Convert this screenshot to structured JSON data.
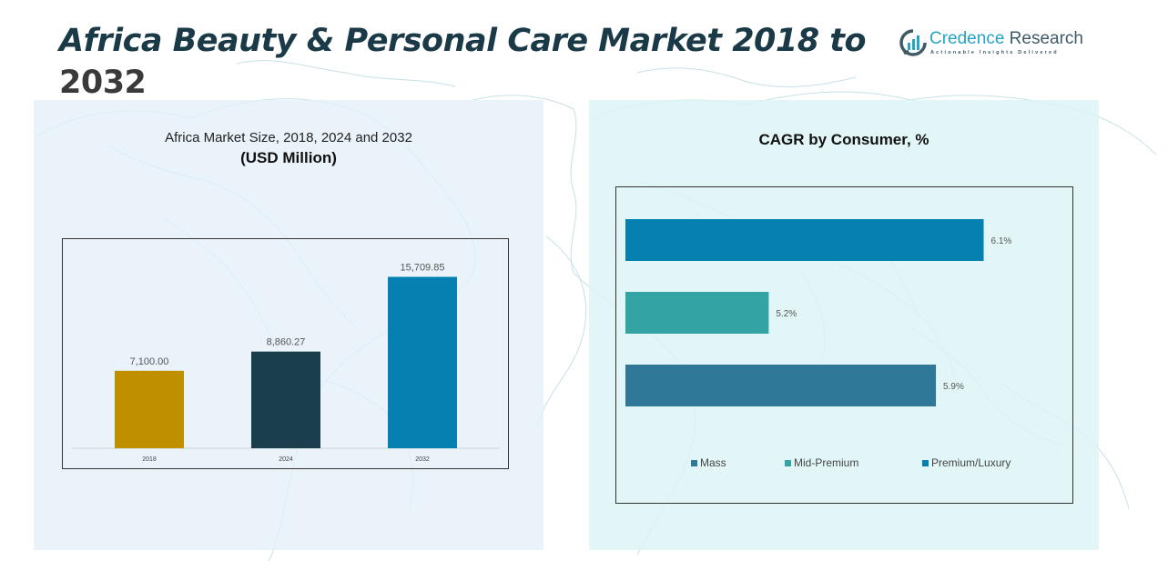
{
  "header": {
    "title_main": "Africa Beauty & Personal Care Market 2018 to",
    "title_year": "2032"
  },
  "logo": {
    "icon": "bar-chart-logo-icon",
    "name_part1": "Credence",
    "name_part2": " Research",
    "tagline": "Actionable Insights Delivered"
  },
  "chart_data": [
    {
      "type": "bar",
      "title": "Africa Market Size, 2018, 2024 and 2032",
      "subtitle": "(USD Million)",
      "xlabel": "",
      "ylabel": "",
      "categories": [
        "2018",
        "2024",
        "2032"
      ],
      "values": [
        7100.0,
        8860.27,
        15709.85
      ],
      "value_labels": [
        "7,100.00",
        "8,860.27",
        "15,709.85"
      ],
      "colors": [
        "#bf8f00",
        "#1a3e4c",
        "#0580b0"
      ],
      "ylim": [
        0,
        17500
      ],
      "grid": false,
      "legend": "none"
    },
    {
      "type": "bar",
      "orientation": "horizontal",
      "title": "CAGR by Consumer, %",
      "categories": [
        "Premium/Luxury",
        "Mid-Premium",
        "Mass"
      ],
      "values": [
        6.1,
        5.2,
        5.9
      ],
      "value_labels": [
        "6.1%",
        "5.2%",
        "5.9%"
      ],
      "colors": [
        "#0580b0",
        "#33a3a3",
        "#2f7898"
      ],
      "xlim": [
        4.6,
        6.3
      ],
      "grid": false,
      "legend": "bottom",
      "legend_entries": [
        {
          "label": "Mass",
          "color": "#2f7898"
        },
        {
          "label": "Mid-Premium",
          "color": "#33a3a3"
        },
        {
          "label": "Premium/Luxury",
          "color": "#0580b0"
        }
      ]
    }
  ]
}
